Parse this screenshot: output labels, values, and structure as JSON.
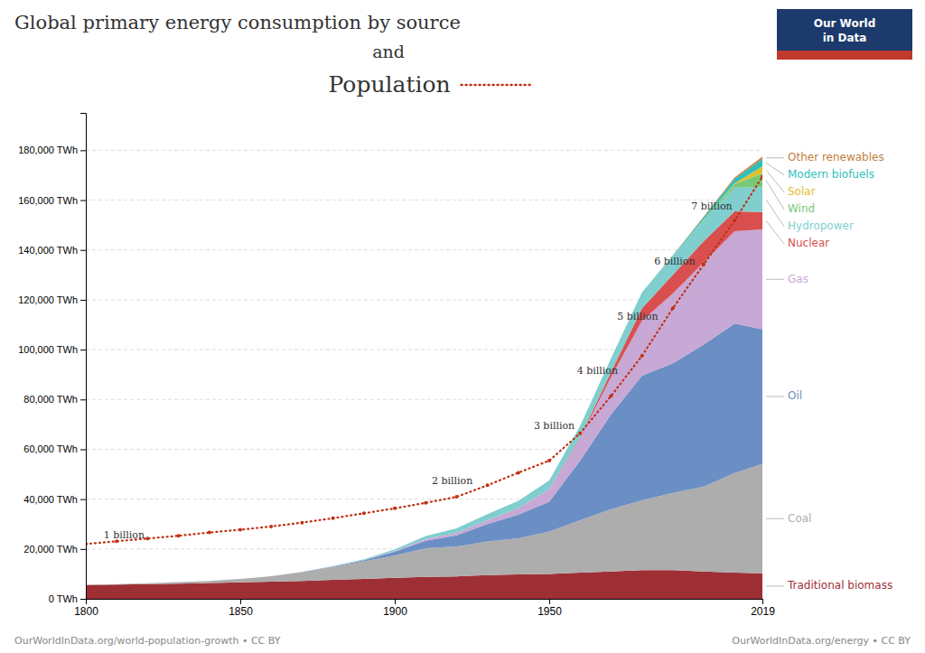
{
  "chart_data": {
    "type": "area",
    "stacked": true,
    "title": "Global primary energy consumption by source",
    "subtitle": "and",
    "x": [
      1800,
      1810,
      1820,
      1830,
      1840,
      1850,
      1860,
      1870,
      1880,
      1890,
      1900,
      1910,
      1920,
      1930,
      1940,
      1950,
      1960,
      1970,
      1980,
      1990,
      2000,
      2010,
      2019
    ],
    "series": [
      {
        "name": "Traditional biomass",
        "color": "#9E3035",
        "values": [
          5500,
          5700,
          5900,
          6100,
          6300,
          6600,
          6900,
          7200,
          7600,
          8000,
          8400,
          8800,
          9000,
          9500,
          9800,
          10000,
          10500,
          11000,
          11500,
          11500,
          11000,
          10500,
          10200
        ]
      },
      {
        "name": "Coal",
        "color": "#ADADAD",
        "values": [
          100,
          200,
          350,
          600,
          900,
          1400,
          2200,
          3500,
          5200,
          7000,
          9000,
          11500,
          12000,
          13500,
          14500,
          17000,
          21000,
          25000,
          28000,
          31000,
          34000,
          40000,
          44000
        ]
      },
      {
        "name": "Oil",
        "color": "#6B8EC5",
        "values": [
          0,
          0,
          0,
          0,
          0,
          0,
          0,
          100,
          200,
          500,
          1500,
          3000,
          4500,
          7000,
          9500,
          12000,
          24000,
          38000,
          50000,
          52000,
          57000,
          60000,
          54000
        ]
      },
      {
        "name": "Gas",
        "color": "#C8A8D5",
        "values": [
          0,
          0,
          0,
          0,
          0,
          0,
          0,
          0,
          50,
          100,
          300,
          700,
          1000,
          1500,
          2500,
          5000,
          9000,
          15000,
          22000,
          28000,
          33000,
          37000,
          40000
        ]
      },
      {
        "name": "Nuclear",
        "color": "#D94F4F",
        "values": [
          0,
          0,
          0,
          0,
          0,
          0,
          0,
          0,
          0,
          0,
          0,
          0,
          0,
          0,
          0,
          0,
          400,
          2000,
          5000,
          7500,
          8500,
          8000,
          7000
        ]
      },
      {
        "name": "Hydropower",
        "color": "#80CECE",
        "values": [
          0,
          0,
          0,
          0,
          0,
          0,
          0,
          0,
          100,
          300,
          600,
          1200,
          1800,
          2500,
          3000,
          3500,
          4500,
          5500,
          6500,
          7500,
          8500,
          9500,
          10000
        ]
      },
      {
        "name": "Wind",
        "color": "#78C878",
        "values": [
          0,
          0,
          0,
          0,
          0,
          0,
          0,
          0,
          0,
          0,
          0,
          0,
          0,
          0,
          0,
          0,
          0,
          0,
          0,
          0,
          300,
          1400,
          5500
        ]
      },
      {
        "name": "Solar",
        "color": "#DEC030",
        "values": [
          0,
          0,
          0,
          0,
          0,
          0,
          0,
          0,
          0,
          0,
          0,
          0,
          0,
          0,
          0,
          0,
          0,
          0,
          0,
          0,
          30,
          300,
          2800
        ]
      },
      {
        "name": "Modern biofuels",
        "color": "#30C0BC",
        "values": [
          0,
          0,
          0,
          0,
          0,
          0,
          0,
          0,
          0,
          0,
          0,
          0,
          0,
          0,
          0,
          0,
          0,
          0,
          0,
          200,
          800,
          1800,
          3000
        ]
      },
      {
        "name": "Other renewables",
        "color": "#C08040",
        "values": [
          0,
          0,
          0,
          0,
          0,
          0,
          0,
          0,
          0,
          0,
          0,
          0,
          0,
          0,
          0,
          0,
          0,
          0,
          0,
          100,
          300,
          600,
          900
        ]
      },
      {
        "name": "Population",
        "type": "line",
        "color": "#C03010",
        "line_style": "dotted",
        "marker": "circle",
        "values": [
          22000,
          23100,
          24200,
          25300,
          26620,
          27720,
          29040,
          30580,
          32340,
          34320,
          36300,
          38500,
          40920,
          45540,
          50600,
          55440,
          66440,
          81400,
          97460,
          116600,
          134200,
          151800,
          169400
        ]
      }
    ],
    "xlim": [
      1800,
      2019
    ],
    "xticks": [
      1800,
      1850,
      1900,
      1950,
      2019
    ],
    "ylim": [
      0,
      195000
    ],
    "yticks": [
      {
        "value": 0,
        "label": "0 TWh"
      },
      {
        "value": 20000,
        "label": "20,000 TWh"
      },
      {
        "value": 40000,
        "label": "40,000 TWh"
      },
      {
        "value": 60000,
        "label": "60,000 TWh"
      },
      {
        "value": 80000,
        "label": "80,000 TWh"
      },
      {
        "value": 100000,
        "label": "100,000 TWh"
      },
      {
        "value": 120000,
        "label": "120,000 TWh"
      },
      {
        "value": 140000,
        "label": "140,000 TWh"
      },
      {
        "value": 160000,
        "label": "160,000 TWh"
      },
      {
        "value": 180000,
        "label": "180,000 TWh"
      }
    ],
    "grid": true,
    "legend": "right",
    "annotations": [
      {
        "text": "1 billion",
        "x": 1804,
        "y": 22000
      },
      {
        "text": "2 billion",
        "x": 1927,
        "y": 44000
      },
      {
        "text": "3 billion",
        "x": 1960,
        "y": 66000
      },
      {
        "text": "4 billion",
        "x": 1974,
        "y": 88000
      },
      {
        "text": "5 billion",
        "x": 1987,
        "y": 110000
      },
      {
        "text": "6 billion",
        "x": 1999,
        "y": 132000
      },
      {
        "text": "7 billion",
        "x": 2011,
        "y": 154000
      }
    ],
    "logo": [
      "Our World",
      "in Data"
    ],
    "footer": [
      "OurWorldInData.org/world-population-growth • CC BY",
      "OurWorldInData.org/energy • CC BY"
    ]
  }
}
